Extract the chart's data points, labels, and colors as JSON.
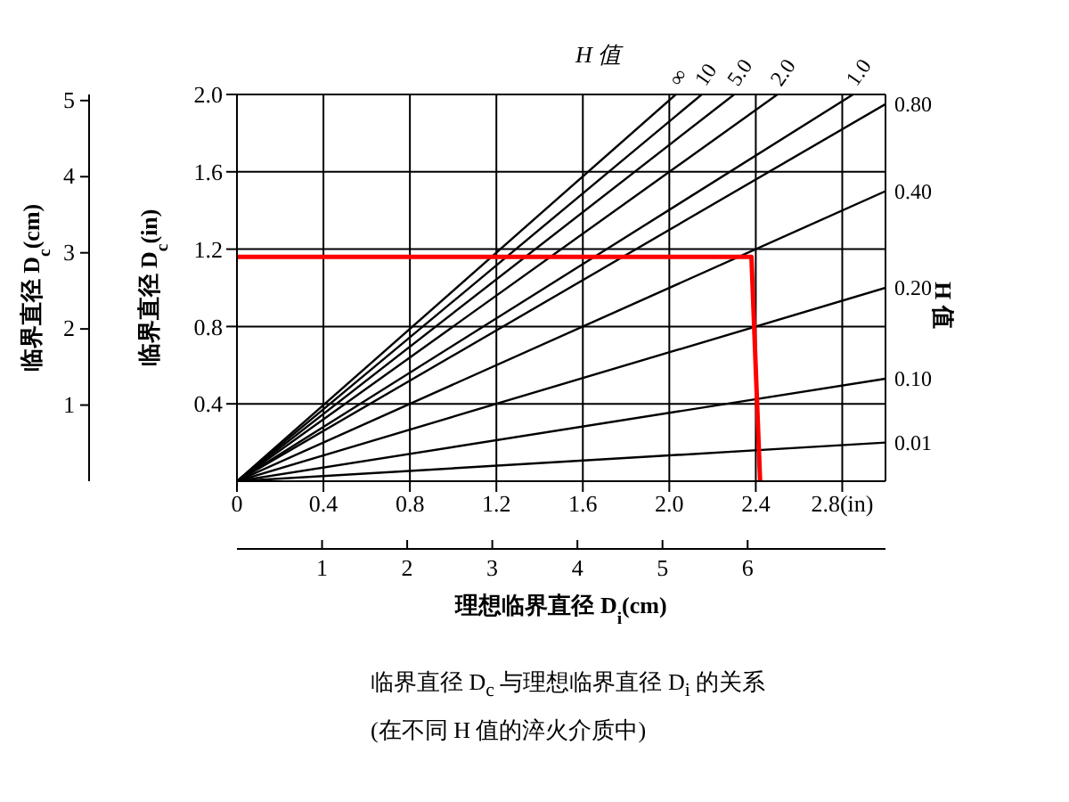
{
  "chart_data": {
    "type": "line",
    "ylabel": "临界直径 D$_{c}$(in)",
    "y2label": "临界直径 D$_{c}$(cm)",
    "x2label": "理想临界直径 D$_{i}$(cm)",
    "legend_title": "H 值",
    "annotations": [
      "H 值",
      "临界直径 D$_{c}$ 与理想临界直径 D$_{i}$ 的关系",
      "(在不同 H 值的淬火介质中)"
    ],
    "xlim": [
      0,
      3.0
    ],
    "xticks": [
      0,
      0.4,
      0.8,
      1.2,
      1.6,
      {
        "value": 2,
        "label": "2.0"
      },
      2.4,
      {
        "value": 2.8,
        "label": "2.8(in)"
      }
    ],
    "ylim": [
      0,
      2.0
    ],
    "yticks": [
      0.4,
      0.8,
      1.2,
      1.6,
      {
        "value": 2,
        "label": "2.0"
      }
    ],
    "x2lim": [
      0,
      7.62
    ],
    "x2ticks": [
      1,
      2,
      3,
      4,
      5,
      6
    ],
    "y2lim": [
      0,
      5.08
    ],
    "y2ticks": [
      1,
      2,
      3,
      4,
      5
    ],
    "grid": true,
    "marker": "none",
    "line_style": "solid",
    "series": [
      {
        "name": "∞",
        "color": "#000000",
        "x": [
          0,
          2.03
        ],
        "values": [
          0,
          2.0
        ]
      },
      {
        "name": "10",
        "color": "#000000",
        "x": [
          0,
          2.15
        ],
        "values": [
          0,
          2.0
        ]
      },
      {
        "name": "5.0",
        "color": "#000000",
        "x": [
          0,
          2.3
        ],
        "values": [
          0,
          2.0
        ]
      },
      {
        "name": "2.0",
        "color": "#000000",
        "x": [
          0,
          2.5
        ],
        "values": [
          0,
          2.0
        ]
      },
      {
        "name": "1.0",
        "color": "#000000",
        "x": [
          0,
          2.85
        ],
        "values": [
          0,
          2.0
        ]
      },
      {
        "name": "0.80",
        "color": "#000000",
        "x": [
          0,
          3.0
        ],
        "values": [
          0,
          1.95
        ]
      },
      {
        "name": "0.40",
        "color": "#000000",
        "x": [
          0,
          3.0
        ],
        "values": [
          0,
          1.5
        ]
      },
      {
        "name": "0.20",
        "color": "#000000",
        "x": [
          0,
          3.0
        ],
        "values": [
          0,
          1.0
        ]
      },
      {
        "name": "0.10",
        "color": "#000000",
        "x": [
          0,
          3.0
        ],
        "values": [
          0,
          0.53
        ]
      },
      {
        "name": "0.01",
        "color": "#000000",
        "x": [
          0,
          3.0
        ],
        "values": [
          0,
          0.2
        ]
      },
      {
        "color": "#ff0000",
        "x": [
          0,
          2.38,
          2.42
        ],
        "values": [
          1.16,
          1.16,
          0
        ]
      }
    ]
  }
}
